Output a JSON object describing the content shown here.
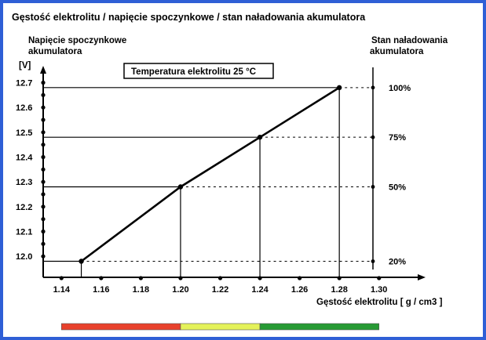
{
  "chart_data": {
    "type": "line",
    "title": "Gęstość elektrolitu / napięcie spoczynkowe / stan naładowania akumulatora",
    "ylabel_lines": [
      "Napięcie spoczynkowe",
      "akumulatora"
    ],
    "yunit": "[V]",
    "right_label_lines": [
      "Stan naładowania",
      "akumulatora"
    ],
    "xlabel": "Gęstość elektrolitu [ g / cm3 ]",
    "annotation": "Temperatura elektrolitu 25 °C",
    "xlim": [
      1.13,
      1.31
    ],
    "ylim": [
      11.95,
      12.73
    ],
    "x_ticks": [
      "1.14",
      "1.16",
      "1.18",
      "1.20",
      "1.22",
      "1.24",
      "1.26",
      "1.28",
      "1.30"
    ],
    "y_ticks": [
      "12.0",
      "12.1",
      "12.2",
      "12.3",
      "12.4",
      "12.5",
      "12.6",
      "12.7"
    ],
    "series": [
      {
        "x": [
          1.15,
          1.2,
          1.24,
          1.28
        ],
        "y": [
          11.98,
          12.28,
          12.48,
          12.68
        ],
        "charge_labels": [
          "20%",
          "50%",
          "75%",
          "100%"
        ]
      }
    ],
    "grid": false,
    "color_bar": [
      {
        "color": "#e8412c",
        "from": 1.14,
        "to": 1.2
      },
      {
        "color": "#e4f25a",
        "from": 1.2,
        "to": 1.24
      },
      {
        "color": "#279a34",
        "from": 1.24,
        "to": 1.3
      }
    ]
  }
}
